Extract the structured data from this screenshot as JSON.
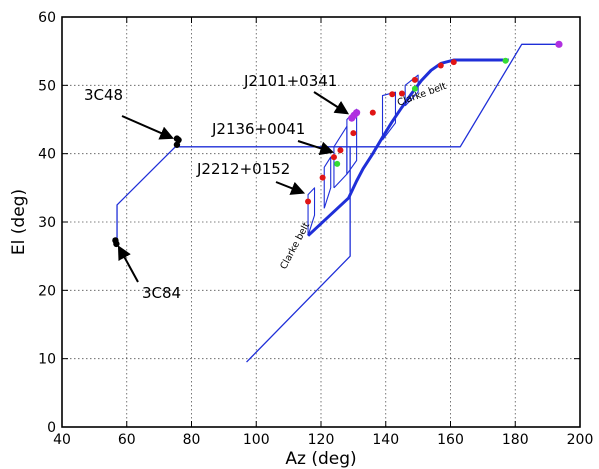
{
  "chart_data": {
    "type": "line",
    "xlabel": "Az (deg)",
    "ylabel": "El (deg)",
    "xlim": [
      40,
      200
    ],
    "ylim": [
      0,
      60
    ],
    "xticks": [
      40,
      60,
      80,
      100,
      120,
      140,
      160,
      180,
      200
    ],
    "yticks": [
      0,
      10,
      20,
      30,
      40,
      50,
      60
    ],
    "grid": true,
    "colors": {
      "track": "#1f2fd8",
      "source_black": "#000000",
      "point_red": "#e01515",
      "point_green": "#33dd33",
      "point_magenta": "#b030e0"
    },
    "track": [
      [
        97,
        9.5
      ],
      [
        129,
        25
      ],
      [
        129,
        41
      ],
      [
        163,
        41
      ],
      [
        182,
        56
      ],
      [
        194,
        56
      ]
    ],
    "track_lower": [
      [
        57,
        27
      ],
      [
        57,
        32.5
      ],
      [
        75,
        41
      ],
      [
        129,
        41
      ]
    ],
    "source_track": [
      [
        116,
        28
      ],
      [
        128.5,
        33.5
      ],
      [
        131,
        36
      ],
      [
        133,
        37.8
      ],
      [
        136,
        40
      ],
      [
        139,
        42.4
      ],
      [
        142,
        44.7
      ],
      [
        145,
        46.8
      ],
      [
        148,
        48.8
      ],
      [
        151,
        50.7
      ],
      [
        154,
        52.2
      ],
      [
        157,
        53.2
      ],
      [
        161,
        53.7
      ],
      [
        178,
        53.7
      ]
    ],
    "red_points": [
      [
        116,
        33
      ],
      [
        120.5,
        36.5
      ],
      [
        124,
        39.5
      ],
      [
        126,
        40.5
      ],
      [
        130,
        43
      ],
      [
        136,
        46
      ],
      [
        142,
        48.7
      ],
      [
        145,
        48.8
      ],
      [
        149,
        50.8
      ],
      [
        157,
        52.9
      ],
      [
        161,
        53.4
      ]
    ],
    "green_points": [
      [
        125,
        38.5
      ],
      [
        149,
        49.5
      ],
      [
        177,
        53.6
      ]
    ],
    "magenta_points": [
      [
        129.5,
        45.2
      ],
      [
        130.2,
        45.6
      ],
      [
        131,
        46
      ],
      [
        193.5,
        56
      ]
    ],
    "black_points": [
      [
        75.5,
        41.3
      ],
      [
        76,
        42
      ],
      [
        75.5,
        42.2
      ],
      [
        56.5,
        27.3
      ],
      [
        56.8,
        26.8
      ]
    ],
    "annotations": [
      {
        "text": "3C48",
        "target": [
          75.5,
          42
        ]
      },
      {
        "text": "3C84",
        "target": [
          56.8,
          27
        ]
      },
      {
        "text": "J2101+0341",
        "target": [
          129.5,
          45.5
        ]
      },
      {
        "text": "J2136+0041",
        "target": [
          125,
          40
        ]
      },
      {
        "text": "J2212+0152",
        "target": [
          116,
          34
        ]
      }
    ],
    "belt_labels": [
      {
        "text": "Clarke belt",
        "anchor": [
          144,
          47
        ],
        "angle": -20
      },
      {
        "text": "Clarke belt",
        "anchor": [
          109,
          23
        ],
        "angle": -62
      }
    ]
  }
}
